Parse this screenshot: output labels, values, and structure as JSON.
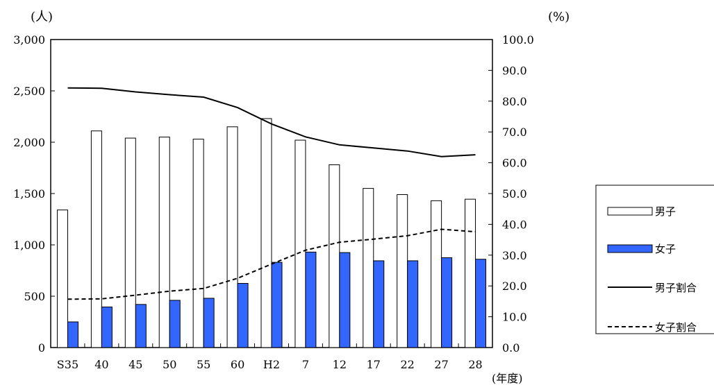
{
  "chart_data": {
    "type": "bar",
    "categories": [
      "S35",
      "40",
      "45",
      "50",
      "55",
      "60",
      "H2",
      "7",
      "12",
      "17",
      "22",
      "27",
      "28"
    ],
    "xlabel": "(年度)",
    "y_left": {
      "unit": "(人)",
      "ylim": [
        0,
        3000
      ],
      "ticks": [
        0,
        500,
        1000,
        1500,
        2000,
        2500,
        3000
      ],
      "tick_labels": [
        "0",
        "500",
        "1,000",
        "1,500",
        "2,000",
        "2,500",
        "3,000"
      ]
    },
    "y_right": {
      "unit": "(%)",
      "ylim": [
        0,
        100
      ],
      "ticks": [
        0,
        10,
        20,
        30,
        40,
        50,
        60,
        70,
        80,
        90,
        100
      ],
      "tick_labels": [
        "0.0",
        "10.0",
        "20.0",
        "30.0",
        "40.0",
        "50.0",
        "60.0",
        "70.0",
        "80.0",
        "90.0",
        "100.0"
      ]
    },
    "grid": false,
    "legend_position": "right",
    "series": [
      {
        "name": "男子",
        "kind": "bar",
        "axis": "left",
        "color": "#ffffff",
        "stroke": "#000000",
        "values": [
          1340,
          2110,
          2040,
          2050,
          2030,
          2150,
          2230,
          2020,
          1780,
          1550,
          1490,
          1430,
          1445
        ]
      },
      {
        "name": "女子",
        "kind": "bar",
        "axis": "left",
        "color": "#3366ff",
        "stroke": "#000000",
        "values": [
          250,
          395,
          420,
          460,
          480,
          625,
          830,
          930,
          925,
          845,
          845,
          875,
          860
        ]
      },
      {
        "name": "男子割合",
        "kind": "line",
        "axis": "right",
        "style": "solid",
        "color": "#000000",
        "values": [
          84.3,
          84.2,
          83.0,
          82.1,
          81.3,
          77.9,
          72.6,
          68.4,
          65.8,
          64.8,
          63.8,
          62.0,
          62.6
        ]
      },
      {
        "name": "女子割合",
        "kind": "line",
        "axis": "right",
        "style": "dashed",
        "color": "#000000",
        "values": [
          15.7,
          15.8,
          17.0,
          18.3,
          19.2,
          22.5,
          27.1,
          31.6,
          34.2,
          35.2,
          36.3,
          38.4,
          37.6
        ]
      }
    ]
  }
}
